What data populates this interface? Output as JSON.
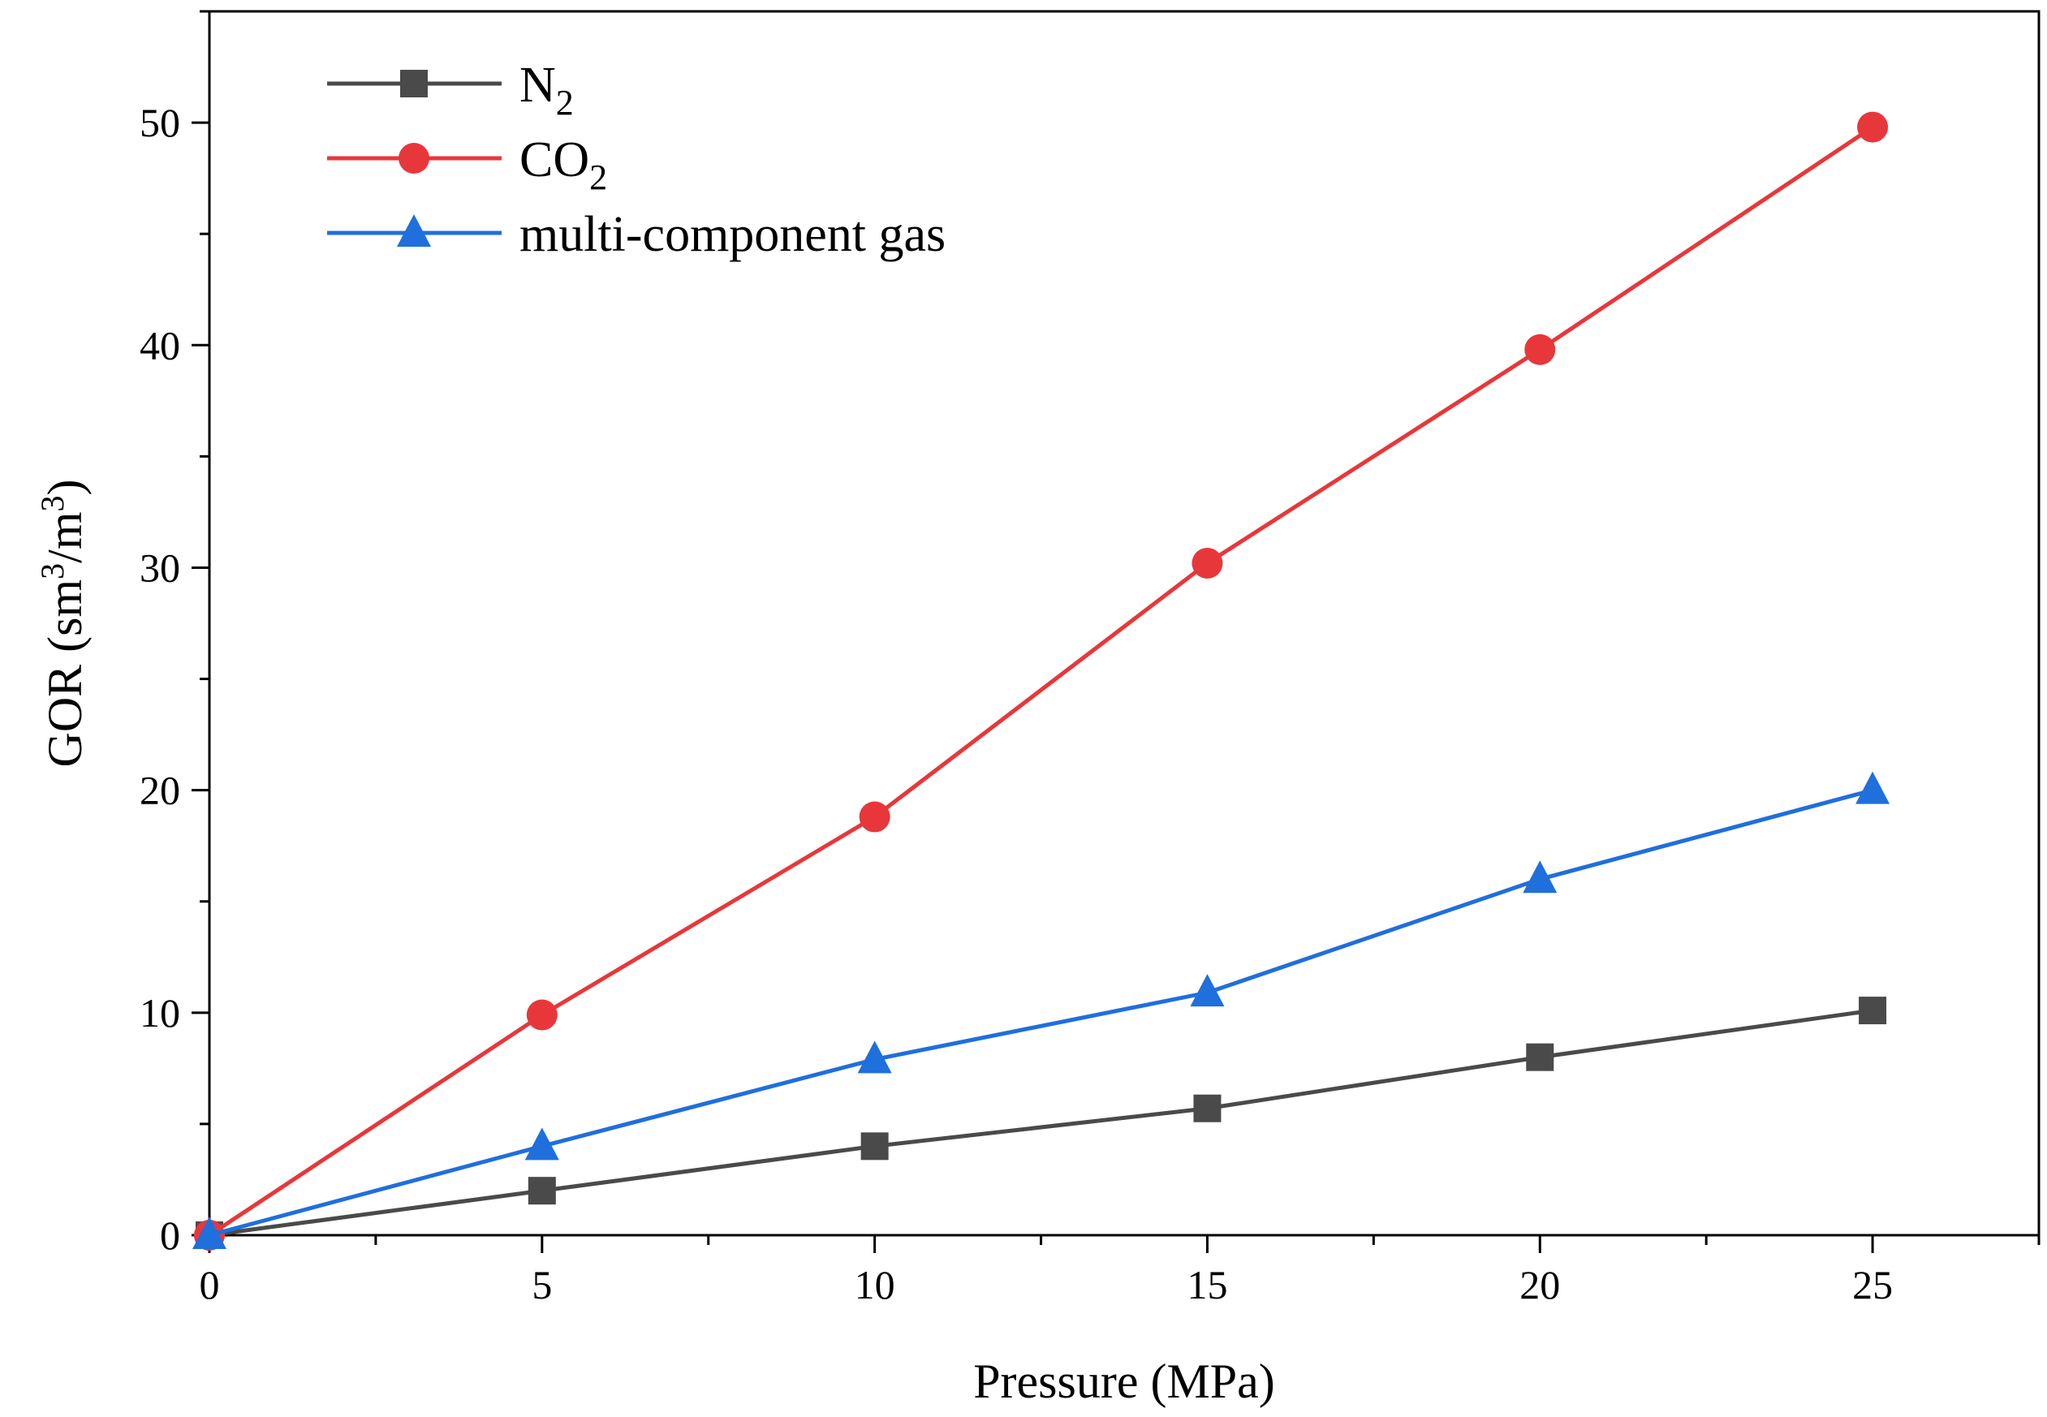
{
  "chart_data": {
    "type": "line",
    "title": "",
    "xlabel": "Pressure (MPa)",
    "ylabel": "GOR (sm3/m3)",
    "ylabel_parts": {
      "pre": "GOR (sm",
      "sup1": "3",
      "mid": "/m",
      "sup2": "3",
      "post": ")"
    },
    "xlim": [
      0,
      27.5
    ],
    "ylim": [
      0,
      55
    ],
    "xticks": [
      0,
      5,
      10,
      15,
      20,
      25
    ],
    "yticks": [
      0,
      10,
      20,
      30,
      40,
      50
    ],
    "grid": false,
    "legend_position": "top-left",
    "x": [
      0,
      5,
      10,
      15,
      20,
      25
    ],
    "series": [
      {
        "name": "N2",
        "label_main": "N",
        "label_sub": "2",
        "color": "#4a4a4a",
        "marker": "square",
        "values": [
          0,
          2,
          4,
          5.7,
          8,
          10.1
        ]
      },
      {
        "name": "CO2",
        "label_main": "CO",
        "label_sub": "2",
        "color": "#e8373a",
        "marker": "circle",
        "values": [
          0,
          9.9,
          18.8,
          30.2,
          39.8,
          49.8
        ]
      },
      {
        "name": "multi-component gas",
        "label_main": "multi-component gas",
        "label_sub": "",
        "color": "#1f6fdc",
        "marker": "triangle",
        "values": [
          0,
          4,
          7.9,
          10.9,
          16,
          20
        ]
      }
    ]
  }
}
